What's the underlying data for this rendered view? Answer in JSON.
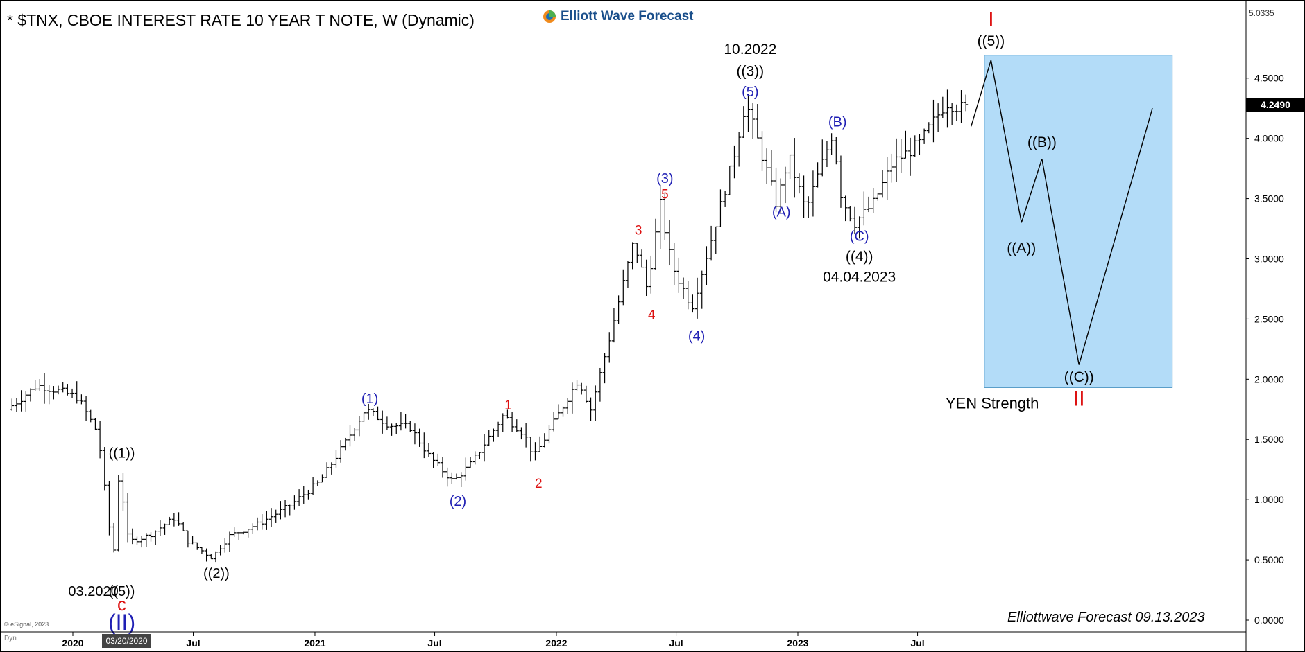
{
  "header": {
    "title": "* $TNX, CBOE INTEREST RATE 10 YEAR T NOTE, W (Dynamic)",
    "logo_text": "Elliott Wave Forecast",
    "footer": "Elliottwave Forecast  09.13.2023",
    "copyright": "© eSignal, 2023",
    "dyn_label": "Dyn",
    "selected_date": "03/20/2020",
    "top_value": "5.0335",
    "current_value": "4.2490"
  },
  "colors": {
    "black": "#000000",
    "blue": "#1f1fb4",
    "red": "#dd1111",
    "box_fill": "#b3dcf8",
    "box_stroke": "#5a9ec9",
    "grid": "#cccccc"
  },
  "chart_data": {
    "type": "ohlc",
    "title": "* $TNX, CBOE INTEREST RATE 10 YEAR T NOTE, W (Dynamic)",
    "ylim": [
      0,
      5.0335
    ],
    "y_ticks": [
      0.0,
      0.5,
      1.0,
      1.5,
      2.0,
      2.5,
      3.0,
      3.5,
      4.0,
      4.5
    ],
    "y_tick_labels": [
      "0.0000",
      "0.5000",
      "1.0000",
      "1.5000",
      "2.0000",
      "2.5000",
      "3.0000",
      "3.5000",
      "4.0000",
      "4.5000"
    ],
    "x_ticks": [
      {
        "label": "2020",
        "date": "2020-01-01"
      },
      {
        "label": "Jul",
        "date": "2020-07-01"
      },
      {
        "label": "2021",
        "date": "2021-01-01"
      },
      {
        "label": "Jul",
        "date": "2021-07-01"
      },
      {
        "label": "2022",
        "date": "2022-01-01"
      },
      {
        "label": "Jul",
        "date": "2022-07-01"
      },
      {
        "label": "2023",
        "date": "2023-01-01"
      },
      {
        "label": "Jul",
        "date": "2023-07-01"
      }
    ],
    "price_path": [
      [
        "2019-10-01",
        1.75
      ],
      [
        "2019-11-15",
        1.95
      ],
      [
        "2019-12-20",
        1.9
      ],
      [
        "2020-01-15",
        1.85
      ],
      [
        "2020-02-15",
        1.55
      ],
      [
        "2020-03-09",
        0.5
      ],
      [
        "2020-03-18",
        1.25
      ],
      [
        "2020-04-01",
        0.65
      ],
      [
        "2020-05-01",
        0.7
      ],
      [
        "2020-06-10",
        0.85
      ],
      [
        "2020-07-01",
        0.65
      ],
      [
        "2020-08-05",
        0.52
      ],
      [
        "2020-09-01",
        0.7
      ],
      [
        "2020-10-15",
        0.8
      ],
      [
        "2020-12-01",
        0.95
      ],
      [
        "2021-01-15",
        1.15
      ],
      [
        "2021-02-20",
        1.45
      ],
      [
        "2021-03-25",
        1.75
      ],
      [
        "2021-05-01",
        1.62
      ],
      [
        "2021-06-01",
        1.6
      ],
      [
        "2021-07-01",
        1.35
      ],
      [
        "2021-08-05",
        1.15
      ],
      [
        "2021-09-01",
        1.3
      ],
      [
        "2021-10-20",
        1.7
      ],
      [
        "2021-11-20",
        1.55
      ],
      [
        "2021-12-05",
        1.35
      ],
      [
        "2022-01-10",
        1.7
      ],
      [
        "2022-02-10",
        2.0
      ],
      [
        "2022-03-01",
        1.75
      ],
      [
        "2022-04-01",
        2.4
      ],
      [
        "2022-05-05",
        3.15
      ],
      [
        "2022-05-25",
        2.75
      ],
      [
        "2022-06-14",
        3.45
      ],
      [
        "2022-07-01",
        2.95
      ],
      [
        "2022-08-01",
        2.6
      ],
      [
        "2022-09-01",
        3.2
      ],
      [
        "2022-10-01",
        3.8
      ],
      [
        "2022-10-21",
        4.3
      ],
      [
        "2022-11-10",
        3.95
      ],
      [
        "2022-12-07",
        3.45
      ],
      [
        "2022-12-25",
        3.85
      ],
      [
        "2023-01-20",
        3.4
      ],
      [
        "2023-03-02",
        4.05
      ],
      [
        "2023-03-15",
        3.5
      ],
      [
        "2023-04-04",
        3.3
      ],
      [
        "2023-05-01",
        3.45
      ],
      [
        "2023-06-01",
        3.8
      ],
      [
        "2023-07-10",
        3.95
      ],
      [
        "2023-08-20",
        4.3
      ],
      [
        "2023-09-13",
        4.25
      ]
    ],
    "projection": [
      [
        "2023-09-20",
        4.1
      ],
      [
        "2023-10-20",
        4.65
      ],
      [
        "2023-12-05",
        3.3
      ],
      [
        "2024-01-05",
        3.83
      ],
      [
        "2024-03-01",
        2.12
      ],
      [
        "2024-06-20",
        4.25
      ]
    ],
    "forecast_box": {
      "x0": "2023-10-10",
      "x1": "2024-07-20",
      "y0": 1.93,
      "y1": 4.69,
      "label": "YEN Strength"
    },
    "wave_labels": [
      {
        "text": "((1))",
        "date": "2020-03-15",
        "price": 1.35,
        "color": "black",
        "size": 20
      },
      {
        "text": "03.2020",
        "date": "2020-02-01",
        "price": 0.2,
        "color": "black",
        "size": 20
      },
      {
        "text": "((5))",
        "date": "2020-03-15",
        "price": 0.2,
        "color": "black",
        "size": 20
      },
      {
        "text": "c",
        "date": "2020-03-15",
        "price": 0.08,
        "color": "red",
        "size": 26
      },
      {
        "text": "(II)",
        "date": "2020-03-15",
        "price": -0.08,
        "color": "blue",
        "size": 32
      },
      {
        "text": "((2))",
        "date": "2020-08-05",
        "price": 0.35,
        "color": "black",
        "size": 20
      },
      {
        "text": "(1)",
        "date": "2021-03-25",
        "price": 1.8,
        "color": "blue",
        "size": 20
      },
      {
        "text": "(2)",
        "date": "2021-08-05",
        "price": 0.95,
        "color": "blue",
        "size": 20
      },
      {
        "text": "1",
        "date": "2021-10-20",
        "price": 1.75,
        "color": "red",
        "size": 19
      },
      {
        "text": "2",
        "date": "2021-12-05",
        "price": 1.1,
        "color": "red",
        "size": 19
      },
      {
        "text": "3",
        "date": "2022-05-05",
        "price": 3.2,
        "color": "red",
        "size": 19
      },
      {
        "text": "4",
        "date": "2022-05-25",
        "price": 2.5,
        "color": "red",
        "size": 19
      },
      {
        "text": "5",
        "date": "2022-06-14",
        "price": 3.5,
        "color": "red",
        "size": 19
      },
      {
        "text": "(3)",
        "date": "2022-06-14",
        "price": 3.63,
        "color": "blue",
        "size": 20
      },
      {
        "text": "(4)",
        "date": "2022-08-01",
        "price": 2.32,
        "color": "blue",
        "size": 20
      },
      {
        "text": "(5)",
        "date": "2022-10-21",
        "price": 4.35,
        "color": "blue",
        "size": 20
      },
      {
        "text": "((3))",
        "date": "2022-10-21",
        "price": 4.52,
        "color": "black",
        "size": 21
      },
      {
        "text": "10.2022",
        "date": "2022-10-21",
        "price": 4.7,
        "color": "black",
        "size": 21
      },
      {
        "text": "(A)",
        "date": "2022-12-07",
        "price": 3.35,
        "color": "blue",
        "size": 20
      },
      {
        "text": "(B)",
        "date": "2023-03-02",
        "price": 4.1,
        "color": "blue",
        "size": 20
      },
      {
        "text": "(C)",
        "date": "2023-04-04",
        "price": 3.15,
        "color": "blue",
        "size": 20
      },
      {
        "text": "((4))",
        "date": "2023-04-04",
        "price": 2.98,
        "color": "black",
        "size": 21
      },
      {
        "text": "04.04.2023",
        "date": "2023-04-04",
        "price": 2.81,
        "color": "black",
        "size": 21
      },
      {
        "text": "((5))",
        "date": "2023-10-20",
        "price": 4.77,
        "color": "black",
        "size": 21
      },
      {
        "text": "I",
        "date": "2023-10-20",
        "price": 4.93,
        "color": "red",
        "size": 30
      },
      {
        "text": "((A))",
        "date": "2023-12-05",
        "price": 3.05,
        "color": "black",
        "size": 21
      },
      {
        "text": "((B))",
        "date": "2024-01-05",
        "price": 3.93,
        "color": "black",
        "size": 21
      },
      {
        "text": "((C))",
        "date": "2024-03-01",
        "price": 1.98,
        "color": "black",
        "size": 21
      },
      {
        "text": "II",
        "date": "2024-03-01",
        "price": 1.78,
        "color": "red",
        "size": 30
      }
    ]
  }
}
